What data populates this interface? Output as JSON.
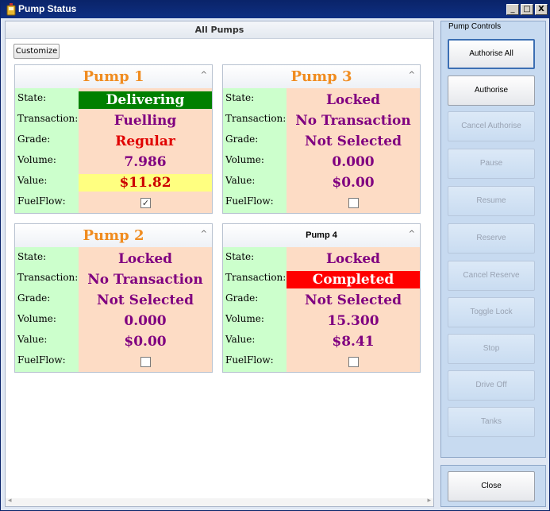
{
  "window": {
    "title": "Pump Status",
    "min_glyph": "_",
    "max_glyph": "□",
    "close_glyph": "X"
  },
  "main": {
    "header": "All Pumps",
    "customize_label": "Customize"
  },
  "pumps": [
    {
      "title": "Pump 1",
      "caret": "^",
      "state": "Delivering",
      "transaction": "Fuelling",
      "grade": "Regular",
      "volume": "7.986",
      "value": "$11.82",
      "fuelflow": true
    },
    {
      "title": "Pump 2",
      "caret": "^",
      "state": "Locked",
      "transaction": "No Transaction",
      "grade": "Not Selected",
      "volume": "0.000",
      "value": "$0.00",
      "fuelflow": false
    },
    {
      "title": "Pump 3",
      "caret": "^",
      "state": "Locked",
      "transaction": "No Transaction",
      "grade": "Not Selected",
      "volume": "0.000",
      "value": "$0.00",
      "fuelflow": false
    },
    {
      "title": "Pump 4",
      "caret": "^",
      "state": "Locked",
      "transaction": "Completed",
      "grade": "Not Selected",
      "volume": "15.300",
      "value": "$8.41",
      "fuelflow": false
    }
  ],
  "field_labels": {
    "state": "State:",
    "transaction": "Transaction:",
    "grade": "Grade:",
    "volume": "Volume:",
    "value": "Value:",
    "fuelflow": "FuelFlow:"
  },
  "controls": {
    "legend": "Pump Controls",
    "buttons": [
      "Authorise All",
      "Authorise",
      "Cancel Authorise",
      "Pause",
      "Resume",
      "Reserve",
      "Cancel Reserve",
      "Toggle Lock",
      "Stop",
      "Drive Off",
      "Tanks"
    ],
    "close_label": "Close"
  },
  "colors": {
    "title_orange": "#f08c20",
    "value_purple": "#800080",
    "delivering_bg": "#008000",
    "completed_bg": "#ff0000",
    "value_highlight_bg": "#ffff80",
    "grade_red": "#e00000",
    "label_bg": "#ccffcc",
    "value_bg": "#fddcc5"
  }
}
